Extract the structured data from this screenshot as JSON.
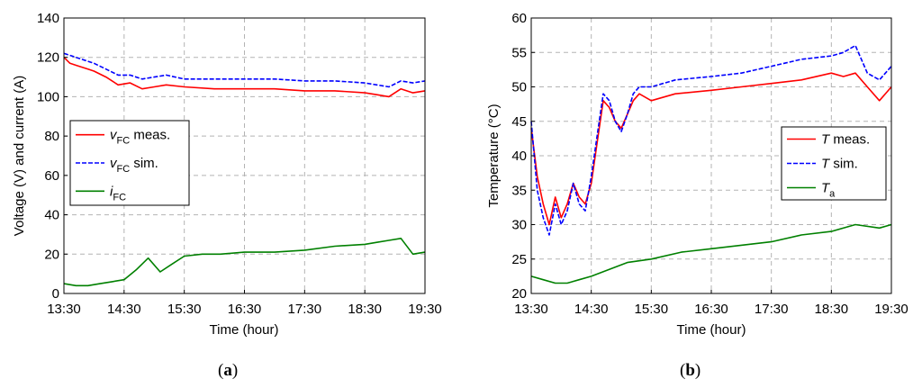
{
  "chart_data": [
    {
      "type": "line",
      "panel_label": "a",
      "xlabel": "Time (hour)",
      "ylabel": "Voltage (V) and current (A)",
      "x_ticks": [
        "13:30",
        "14:30",
        "15:30",
        "16:30",
        "17:30",
        "18:30",
        "19:30"
      ],
      "y_ticks": [
        0,
        20,
        40,
        60,
        80,
        100,
        120,
        140
      ],
      "xlim": [
        "13:30",
        "19:30"
      ],
      "ylim": [
        0,
        140
      ],
      "grid": true,
      "legend_position": "middle-left",
      "series": [
        {
          "label_main": "v",
          "label_sub": "FC",
          "label_rest": " meas.",
          "color": "#ff0000",
          "style": "solid",
          "x": [
            "13:30",
            "13:36",
            "13:42",
            "13:48",
            "13:54",
            "14:00",
            "14:12",
            "14:24",
            "14:36",
            "14:48",
            "15:00",
            "15:12",
            "15:30",
            "16:00",
            "16:30",
            "17:00",
            "17:30",
            "18:00",
            "18:30",
            "18:42",
            "18:54",
            "19:06",
            "19:18",
            "19:30"
          ],
          "y": [
            120,
            117,
            116,
            115,
            114,
            113,
            110,
            106,
            107,
            104,
            105,
            106,
            105,
            104,
            104,
            104,
            103,
            103,
            102,
            101,
            100,
            104,
            102,
            103
          ]
        },
        {
          "label_main": "v",
          "label_sub": "FC",
          "label_rest": " sim.",
          "color": "#0000ff",
          "style": "dashed",
          "x": [
            "13:30",
            "13:36",
            "13:42",
            "13:48",
            "13:54",
            "14:00",
            "14:12",
            "14:24",
            "14:36",
            "14:48",
            "15:00",
            "15:12",
            "15:30",
            "16:00",
            "16:30",
            "17:00",
            "17:30",
            "18:00",
            "18:30",
            "18:42",
            "18:54",
            "19:06",
            "19:18",
            "19:30"
          ],
          "y": [
            122,
            121,
            120,
            119,
            118,
            117,
            114,
            111,
            111,
            109,
            110,
            111,
            109,
            109,
            109,
            109,
            108,
            108,
            107,
            106,
            105,
            108,
            107,
            108
          ]
        },
        {
          "label_main": "i",
          "label_sub": "FC",
          "label_rest": "",
          "color": "#008000",
          "style": "solid",
          "x": [
            "13:30",
            "13:42",
            "13:54",
            "14:06",
            "14:18",
            "14:30",
            "14:42",
            "14:54",
            "15:06",
            "15:18",
            "15:30",
            "15:48",
            "16:06",
            "16:30",
            "17:00",
            "17:30",
            "18:00",
            "18:30",
            "18:42",
            "18:54",
            "19:06",
            "19:18",
            "19:30"
          ],
          "y": [
            5,
            4,
            4,
            5,
            6,
            7,
            12,
            18,
            11,
            15,
            19,
            20,
            20,
            21,
            21,
            22,
            24,
            25,
            26,
            27,
            28,
            20,
            21
          ]
        }
      ]
    },
    {
      "type": "line",
      "panel_label": "b",
      "xlabel": "Time (hour)",
      "ylabel": "Temperature (°C)",
      "x_ticks": [
        "13:30",
        "14:30",
        "15:30",
        "16:30",
        "17:30",
        "18:30",
        "19:30"
      ],
      "y_ticks": [
        20,
        25,
        30,
        35,
        40,
        45,
        50,
        55,
        60
      ],
      "xlim": [
        "13:30",
        "19:30"
      ],
      "ylim": [
        20,
        60
      ],
      "grid": true,
      "legend_position": "middle-right",
      "series": [
        {
          "label_main": "T",
          "label_sub": "",
          "label_rest": " meas.",
          "color": "#ff0000",
          "style": "solid",
          "x": [
            "13:30",
            "13:36",
            "13:42",
            "13:48",
            "13:54",
            "14:00",
            "14:06",
            "14:12",
            "14:18",
            "14:24",
            "14:30",
            "14:36",
            "14:42",
            "14:48",
            "14:54",
            "15:00",
            "15:06",
            "15:12",
            "15:18",
            "15:30",
            "15:54",
            "16:30",
            "17:00",
            "17:30",
            "18:00",
            "18:30",
            "18:42",
            "18:54",
            "19:06",
            "19:18",
            "19:30"
          ],
          "y": [
            44,
            37,
            33,
            30,
            34,
            31,
            33,
            36,
            34,
            33,
            36,
            42,
            48,
            47,
            45,
            44,
            46,
            48,
            49,
            48,
            49,
            49.5,
            50,
            50.5,
            51,
            52,
            51.5,
            52,
            50,
            48,
            50
          ]
        },
        {
          "label_main": "T",
          "label_sub": "",
          "label_rest": " sim.",
          "color": "#0000ff",
          "style": "dashed",
          "x": [
            "13:30",
            "13:36",
            "13:42",
            "13:48",
            "13:54",
            "14:00",
            "14:06",
            "14:12",
            "14:18",
            "14:24",
            "14:30",
            "14:36",
            "14:42",
            "14:48",
            "14:54",
            "15:00",
            "15:06",
            "15:12",
            "15:18",
            "15:30",
            "15:54",
            "16:30",
            "17:00",
            "17:30",
            "18:00",
            "18:30",
            "18:42",
            "18:54",
            "19:06",
            "19:18",
            "19:30"
          ],
          "y": [
            45,
            35,
            31,
            28.5,
            33,
            30,
            32,
            36,
            33,
            32,
            37,
            43,
            49,
            48,
            45,
            43.5,
            46,
            49,
            50,
            50,
            51,
            51.5,
            52,
            53,
            54,
            54.5,
            55,
            56,
            52,
            51,
            53
          ]
        },
        {
          "label_main": "T",
          "label_sub": "a",
          "label_rest": "",
          "color": "#008000",
          "style": "solid",
          "x": [
            "13:30",
            "13:42",
            "13:54",
            "14:06",
            "14:18",
            "14:30",
            "14:48",
            "15:06",
            "15:30",
            "16:00",
            "16:30",
            "17:00",
            "17:30",
            "18:00",
            "18:30",
            "18:54",
            "19:18",
            "19:30"
          ],
          "y": [
            22.5,
            22,
            21.5,
            21.5,
            22,
            22.5,
            23.5,
            24.5,
            25,
            26,
            26.5,
            27,
            27.5,
            28.5,
            29,
            30,
            29.5,
            30
          ]
        }
      ]
    }
  ],
  "captions": {
    "a": "a",
    "b": "b"
  }
}
